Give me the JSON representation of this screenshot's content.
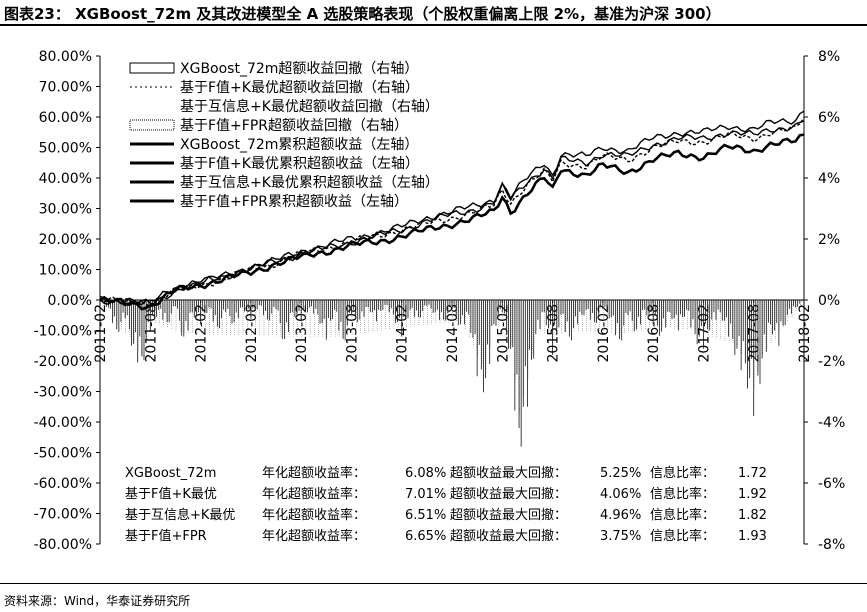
{
  "title": "图表23：  XGBoost_72m 及其改进模型全 A 选股策略表现（个股权重偏离上限 2%，基准为沪深 300）",
  "source": "资料来源：Wind，华泰证券研究所",
  "chart_data": {
    "type": "line",
    "x_tick_labels": [
      "2011-02",
      "2011-08",
      "2012-02",
      "2012-08",
      "2013-02",
      "2013-08",
      "2014-02",
      "2014-08",
      "2015-02",
      "2015-08",
      "2016-02",
      "2016-08",
      "2017-02",
      "2017-08",
      "2018-02"
    ],
    "left_axis": {
      "ticks": [
        "80.00%",
        "70.00%",
        "60.00%",
        "50.00%",
        "40.00%",
        "30.00%",
        "20.00%",
        "10.00%",
        "0.00%",
        "-10.00%",
        "-20.00%",
        "-30.00%",
        "-40.00%",
        "-50.00%",
        "-60.00%",
        "-70.00%",
        "-80.00%"
      ],
      "ylim": [
        -80,
        80
      ]
    },
    "right_axis": {
      "ticks": [
        "8%",
        "6%",
        "4%",
        "2%",
        "0%",
        "-2%",
        "-4%",
        "-6%",
        "-8%"
      ],
      "ylim": [
        -8,
        8
      ]
    },
    "legend": [
      {
        "label": "XGBoost_72m超额收益回撤（右轴）",
        "kind": "area-outline"
      },
      {
        "label": "基于F值+K最优超额收益回撤（右轴）",
        "kind": "dashed"
      },
      {
        "label": "基于互信息+K最优超额收益回撤（右轴）",
        "kind": "none"
      },
      {
        "label": "基于F值+FPR超额收益回撤（右轴）",
        "kind": "area-dotted"
      },
      {
        "label": "XGBoost_72m累积超额收益（左轴）",
        "kind": "line"
      },
      {
        "label": "基于F值+K最优累积超额收益（左轴）",
        "kind": "line"
      },
      {
        "label": "基于互信息+K最优累积超额收益（左轴）",
        "kind": "line"
      },
      {
        "label": "基于F值+FPR累积超额收益（左轴）",
        "kind": "line"
      }
    ],
    "cumulative_series": [
      {
        "name": "XGBoost_72m累积超额收益（左轴）",
        "points": [
          [
            0,
            0
          ],
          [
            6,
            -2
          ],
          [
            9,
            3
          ],
          [
            12,
            5
          ],
          [
            15,
            7
          ],
          [
            18,
            9
          ],
          [
            21,
            12
          ],
          [
            24,
            14
          ],
          [
            27,
            16
          ],
          [
            30,
            18
          ],
          [
            33,
            19
          ],
          [
            36,
            21
          ],
          [
            39,
            23
          ],
          [
            42,
            25
          ],
          [
            45,
            27
          ],
          [
            47,
            29
          ],
          [
            48,
            34
          ],
          [
            49,
            29
          ],
          [
            51,
            35
          ],
          [
            53,
            40
          ],
          [
            54,
            36
          ],
          [
            55,
            43
          ],
          [
            58,
            41
          ],
          [
            60,
            44
          ],
          [
            63,
            42
          ],
          [
            66,
            46
          ],
          [
            69,
            48
          ],
          [
            72,
            47
          ],
          [
            75,
            50
          ],
          [
            78,
            49
          ],
          [
            80,
            51
          ],
          [
            83,
            52
          ],
          [
            84,
            54
          ]
        ]
      },
      {
        "name": "基于F值+K最优累积超额收益（左轴）",
        "points": [
          [
            0,
            0
          ],
          [
            6,
            -1
          ],
          [
            9,
            4
          ],
          [
            12,
            6
          ],
          [
            15,
            8
          ],
          [
            18,
            11
          ],
          [
            21,
            13
          ],
          [
            24,
            16
          ],
          [
            27,
            18
          ],
          [
            30,
            20
          ],
          [
            33,
            22
          ],
          [
            36,
            24
          ],
          [
            39,
            27
          ],
          [
            42,
            29
          ],
          [
            45,
            31
          ],
          [
            47,
            33
          ],
          [
            48,
            38
          ],
          [
            49,
            34
          ],
          [
            51,
            40
          ],
          [
            53,
            45
          ],
          [
            54,
            41
          ],
          [
            55,
            48
          ],
          [
            58,
            47
          ],
          [
            60,
            50
          ],
          [
            63,
            49
          ],
          [
            66,
            53
          ],
          [
            69,
            55
          ],
          [
            72,
            55
          ],
          [
            75,
            57
          ],
          [
            78,
            56
          ],
          [
            80,
            58
          ],
          [
            83,
            59
          ],
          [
            84,
            63
          ]
        ]
      },
      {
        "name": "基于互信息+K最优累积超额收益（左轴）",
        "points": [
          [
            0,
            0
          ],
          [
            6,
            -1
          ],
          [
            9,
            3
          ],
          [
            12,
            6
          ],
          [
            15,
            8
          ],
          [
            18,
            10
          ],
          [
            21,
            13
          ],
          [
            24,
            15
          ],
          [
            27,
            17
          ],
          [
            30,
            19
          ],
          [
            33,
            21
          ],
          [
            36,
            23
          ],
          [
            39,
            26
          ],
          [
            42,
            28
          ],
          [
            45,
            30
          ],
          [
            47,
            32
          ],
          [
            48,
            37
          ],
          [
            49,
            33
          ],
          [
            51,
            39
          ],
          [
            53,
            43
          ],
          [
            54,
            40
          ],
          [
            55,
            46
          ],
          [
            58,
            45
          ],
          [
            60,
            48
          ],
          [
            63,
            47
          ],
          [
            66,
            51
          ],
          [
            69,
            53
          ],
          [
            72,
            53
          ],
          [
            75,
            55
          ],
          [
            78,
            54
          ],
          [
            80,
            56
          ],
          [
            83,
            57
          ],
          [
            84,
            59
          ]
        ]
      },
      {
        "name": "基于F值+FPR累积超额收益（左轴）",
        "points": [
          [
            0,
            0
          ],
          [
            6,
            -1
          ],
          [
            9,
            3
          ],
          [
            12,
            5
          ],
          [
            15,
            7
          ],
          [
            18,
            10
          ],
          [
            21,
            12
          ],
          [
            24,
            15
          ],
          [
            27,
            17
          ],
          [
            30,
            19
          ],
          [
            33,
            21
          ],
          [
            36,
            23
          ],
          [
            39,
            25
          ],
          [
            42,
            27
          ],
          [
            45,
            29
          ],
          [
            47,
            31
          ],
          [
            48,
            36
          ],
          [
            49,
            32
          ],
          [
            51,
            38
          ],
          [
            53,
            42
          ],
          [
            54,
            39
          ],
          [
            55,
            45
          ],
          [
            58,
            44
          ],
          [
            60,
            47
          ],
          [
            63,
            46
          ],
          [
            66,
            50
          ],
          [
            69,
            52
          ],
          [
            72,
            52
          ],
          [
            75,
            54
          ],
          [
            78,
            53
          ],
          [
            80,
            55
          ],
          [
            83,
            56
          ],
          [
            84,
            60
          ]
        ]
      }
    ],
    "drawdown_series": [
      {
        "name": "XGBoost_72m超额收益回撤（右轴）",
        "points": [
          [
            0,
            0
          ],
          [
            1,
            -0.3
          ],
          [
            2,
            -1.2
          ],
          [
            3,
            -0.6
          ],
          [
            4,
            -1.8
          ],
          [
            5,
            -2.3
          ],
          [
            6,
            -1.0
          ],
          [
            7,
            -0.4
          ],
          [
            8,
            -0.9
          ],
          [
            9,
            -0.2
          ],
          [
            10,
            -1.5
          ],
          [
            11,
            -0.5
          ],
          [
            12,
            -0.8
          ],
          [
            13,
            -0.3
          ],
          [
            14,
            -1.1
          ],
          [
            15,
            -0.4
          ],
          [
            16,
            -0.9
          ],
          [
            17,
            -0.3
          ],
          [
            18,
            -0.6
          ],
          [
            19,
            -0.2
          ],
          [
            20,
            -0.8
          ],
          [
            21,
            -0.3
          ],
          [
            22,
            -1.6
          ],
          [
            23,
            -0.5
          ],
          [
            24,
            -0.7
          ],
          [
            25,
            -0.3
          ],
          [
            26,
            -0.6
          ],
          [
            27,
            -1.3
          ],
          [
            28,
            -0.4
          ],
          [
            29,
            -1.6
          ],
          [
            30,
            -0.5
          ],
          [
            31,
            -0.8
          ],
          [
            32,
            -0.3
          ],
          [
            33,
            -0.7
          ],
          [
            34,
            -0.2
          ],
          [
            35,
            -0.6
          ],
          [
            36,
            -1.2
          ],
          [
            37,
            -0.4
          ],
          [
            38,
            -0.7
          ],
          [
            39,
            -0.2
          ],
          [
            40,
            -0.5
          ],
          [
            41,
            -0.8
          ],
          [
            42,
            -0.3
          ],
          [
            43,
            -1.0
          ],
          [
            44,
            -0.6
          ],
          [
            45,
            -2.5
          ],
          [
            46,
            -3.2
          ],
          [
            47,
            -1.0
          ],
          [
            48,
            -0.4
          ],
          [
            49,
            -2.0
          ],
          [
            50,
            -5.25
          ],
          [
            51,
            -3.5
          ],
          [
            52,
            -1.4
          ],
          [
            53,
            -0.5
          ],
          [
            54,
            -1.8
          ],
          [
            55,
            -0.6
          ],
          [
            56,
            -1.5
          ],
          [
            57,
            -0.8
          ],
          [
            58,
            -0.4
          ],
          [
            59,
            -0.9
          ],
          [
            60,
            -0.3
          ],
          [
            61,
            -0.7
          ],
          [
            62,
            -1.6
          ],
          [
            63,
            -0.5
          ],
          [
            64,
            -1.2
          ],
          [
            65,
            -0.4
          ],
          [
            66,
            -0.8
          ],
          [
            67,
            -1.3
          ],
          [
            68,
            -0.5
          ],
          [
            69,
            -1.0
          ],
          [
            70,
            -0.4
          ],
          [
            71,
            -1.4
          ],
          [
            72,
            -1.6
          ],
          [
            73,
            -0.8
          ],
          [
            74,
            -0.5
          ],
          [
            75,
            -1.2
          ],
          [
            76,
            -2.0
          ],
          [
            77,
            -2.6
          ],
          [
            78,
            -3.8
          ],
          [
            79,
            -2.4
          ],
          [
            80,
            -1.0
          ],
          [
            81,
            -1.5
          ],
          [
            82,
            -0.6
          ],
          [
            83,
            -0.3
          ],
          [
            84,
            0
          ]
        ]
      },
      {
        "name": "基于F值+FPR超额收益回撤（右轴）",
        "points": [
          [
            0,
            0
          ],
          [
            2,
            -0.8
          ],
          [
            4,
            -1.4
          ],
          [
            5,
            -1.9
          ],
          [
            6,
            -0.7
          ],
          [
            10,
            -1.1
          ],
          [
            22,
            -1.2
          ],
          [
            29,
            -1.2
          ],
          [
            36,
            -0.9
          ],
          [
            43,
            -0.7
          ],
          [
            45,
            -1.8
          ],
          [
            46,
            -2.4
          ],
          [
            47,
            -0.7
          ],
          [
            49,
            -1.5
          ],
          [
            50,
            -3.75
          ],
          [
            51,
            -2.6
          ],
          [
            52,
            -1.0
          ],
          [
            54,
            -1.2
          ],
          [
            56,
            -1.0
          ],
          [
            62,
            -1.1
          ],
          [
            67,
            -0.9
          ],
          [
            71,
            -1.0
          ],
          [
            72,
            -1.1
          ],
          [
            76,
            -1.5
          ],
          [
            77,
            -2.0
          ],
          [
            78,
            -2.9
          ],
          [
            79,
            -1.8
          ],
          [
            81,
            -1.1
          ],
          [
            84,
            0
          ]
        ]
      }
    ],
    "stats": [
      {
        "model": "XGBoost_72m",
        "annual_label": "年化超额收益率：",
        "annual": "6.08%",
        "mdd_label": "超额收益最大回撤：",
        "mdd": "5.25%",
        "ir_label": "信息比率：",
        "ir": "1.72"
      },
      {
        "model": "基于F值+K最优",
        "annual_label": "年化超额收益率：",
        "annual": "7.01%",
        "mdd_label": "超额收益最大回撤：",
        "mdd": "4.06%",
        "ir_label": "信息比率：",
        "ir": "1.92"
      },
      {
        "model": "基于互信息+K最优",
        "annual_label": "年化超额收益率：",
        "annual": "6.51%",
        "mdd_label": "超额收益最大回撤：",
        "mdd": "4.96%",
        "ir_label": "信息比率：",
        "ir": "1.82"
      },
      {
        "model": "基于F值+FPR",
        "annual_label": "年化超额收益率：",
        "annual": "6.65%",
        "mdd_label": "超额收益最大回撤：",
        "mdd": "3.75%",
        "ir_label": "信息比率：",
        "ir": "1.93"
      }
    ]
  }
}
